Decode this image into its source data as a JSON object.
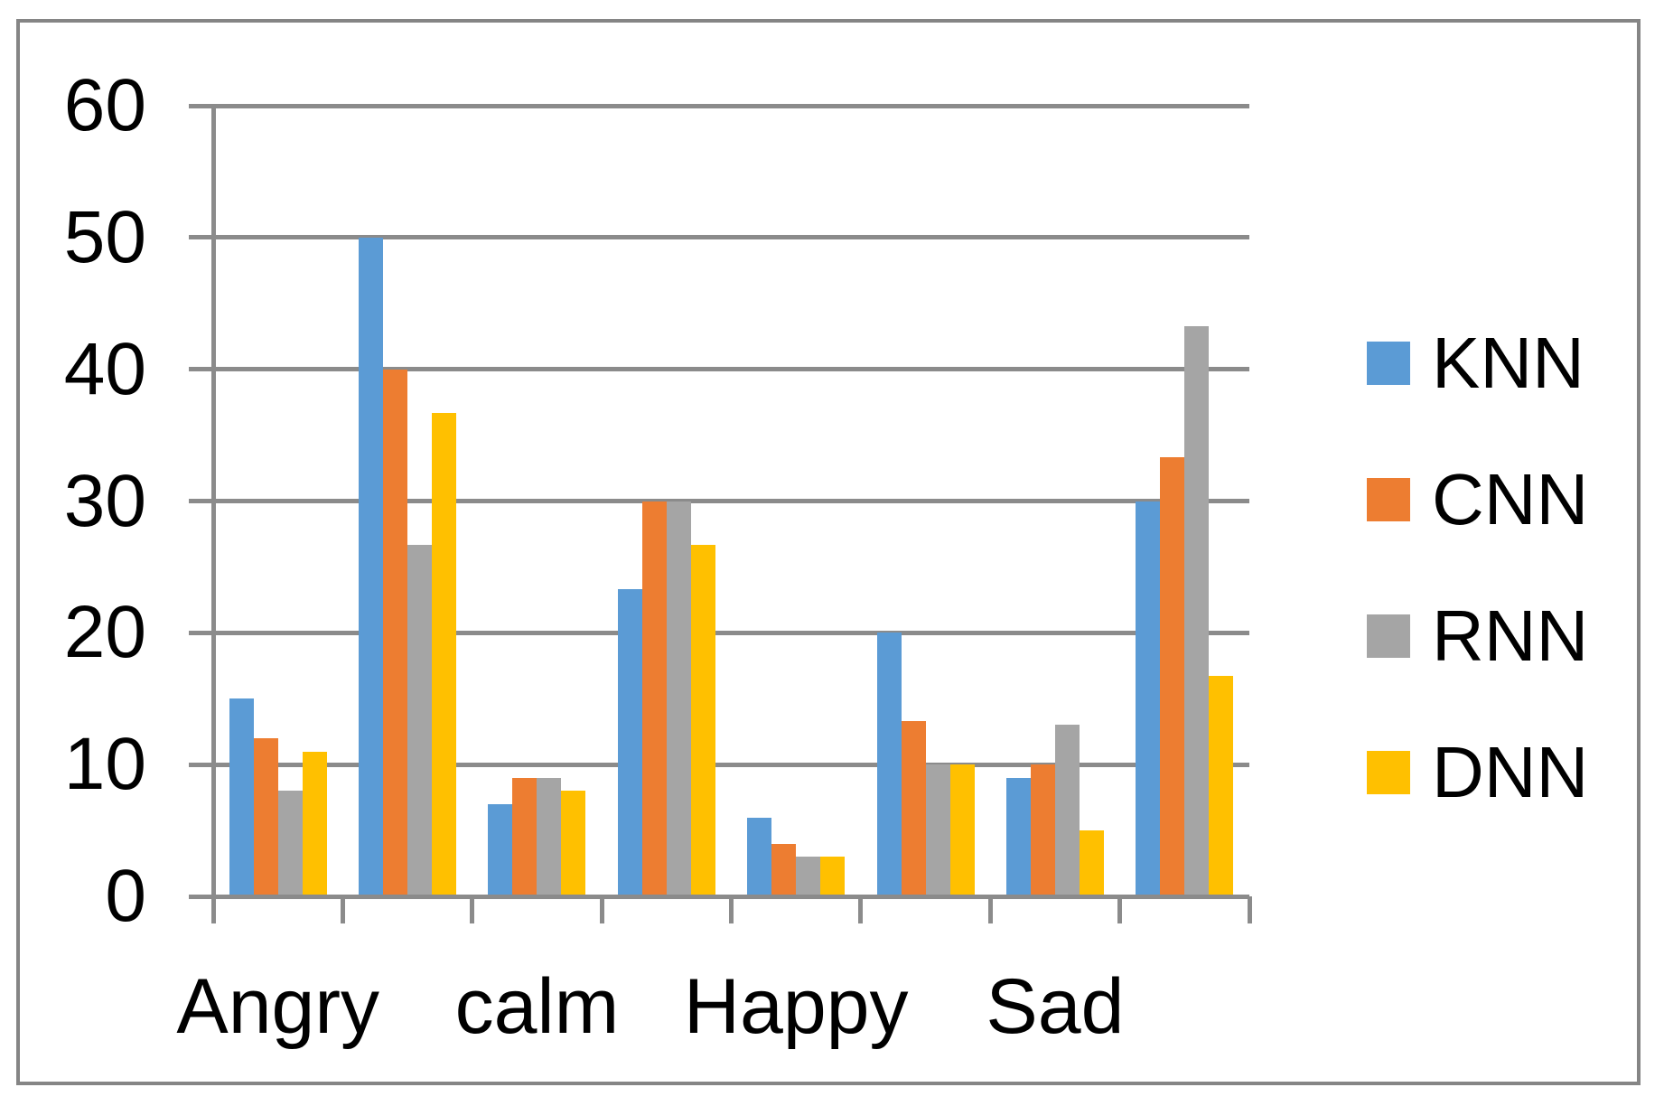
{
  "chart_data": {
    "type": "bar",
    "title": "",
    "xlabel": "",
    "ylabel": "",
    "categories": [
      "Angry",
      "",
      "calm",
      "",
      "Happy",
      "",
      "Sad",
      ""
    ],
    "visible_category_labels": [
      "Angry",
      "calm",
      "Happy",
      "Sad"
    ],
    "series": [
      {
        "name": "KNN",
        "color": "#5B9BD5",
        "values": [
          15,
          50,
          7,
          23.3,
          6,
          20,
          9,
          30
        ]
      },
      {
        "name": "CNN",
        "color": "#ED7D31",
        "values": [
          12,
          40,
          9,
          30,
          4,
          13.3,
          10,
          33.3
        ]
      },
      {
        "name": "RNN",
        "color": "#A5A5A5",
        "values": [
          8,
          26.7,
          9,
          30,
          3,
          10,
          13,
          43.3
        ]
      },
      {
        "name": "DNN",
        "color": "#FFC000",
        "values": [
          11,
          36.7,
          8,
          26.7,
          3,
          10,
          5,
          16.7
        ]
      }
    ],
    "ylim": [
      0,
      60
    ],
    "yticks": [
      0,
      10,
      20,
      30,
      40,
      50,
      60
    ],
    "grid": true,
    "legend_position": "right",
    "style": {
      "grid_color": "#8B8B8B",
      "axis_color": "#8B8B8B",
      "frame_border_color": "#858585",
      "background": "#FFFFFF",
      "text_color": "#000000"
    }
  }
}
